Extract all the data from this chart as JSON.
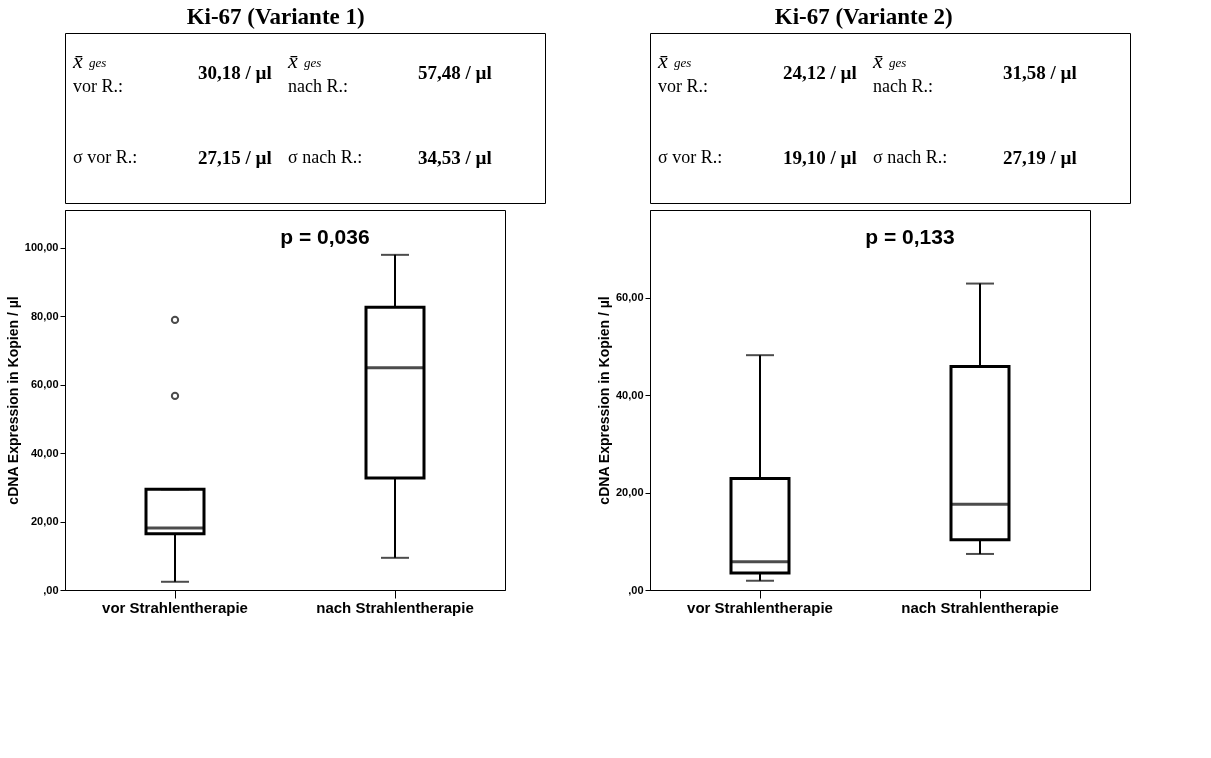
{
  "chart_data": [
    {
      "type": "box",
      "title": "Ki-67 (Variante 1)",
      "ylabel": "cDNA Expression in Kopien / µl",
      "categories": [
        "vor Strahlentherapie",
        "nach Strahlentherapie"
      ],
      "boxes": [
        {
          "low": 2.4,
          "q1": 16.4,
          "median": 18.1,
          "q3": 29.4,
          "high": 29.4,
          "outliers": [
            56.7,
            78.9
          ]
        },
        {
          "low": 9.4,
          "q1": 32.7,
          "median": 64.9,
          "q3": 82.6,
          "high": 97.9
        }
      ],
      "ylim": [
        0,
        111
      ],
      "yticks": [
        {
          "value": 0,
          "label": ",00"
        },
        {
          "value": 20,
          "label": "20,00"
        },
        {
          "value": 40,
          "label": "40,00"
        },
        {
          "value": 60,
          "label": "60,00"
        },
        {
          "value": 80,
          "label": "80,00"
        },
        {
          "value": 100,
          "label": "100,00"
        }
      ],
      "annotations": [
        "x̄$_{ges}$ vor R.:",
        "30,18 / µl",
        "x̄$_{ges}$ nach R.:",
        "57,48 / µl",
        "σ vor R.:",
        "27,15 / µl",
        "σ nach R.:",
        "34,53 / µl",
        "p = 0,036"
      ]
    },
    {
      "type": "box",
      "title": "Ki-67 (Variante 2)",
      "ylabel": "cDNA Expression in Kopien / µl",
      "categories": [
        "vor Strahlentherapie",
        "nach Strahlentherapie"
      ],
      "boxes": [
        {
          "low": 1.9,
          "q1": 3.5,
          "median": 5.8,
          "q3": 22.9,
          "high": 48.2
        },
        {
          "low": 7.4,
          "q1": 10.3,
          "median": 17.6,
          "q3": 45.9,
          "high": 62.9
        }
      ],
      "ylim": [
        0,
        78
      ],
      "yticks": [
        {
          "value": 0,
          "label": ",00"
        },
        {
          "value": 20,
          "label": "20,00"
        },
        {
          "value": 40,
          "label": "40,00"
        },
        {
          "value": 60,
          "label": "60,00"
        }
      ],
      "annotations": [
        "x̄$_{ges}$ vor R.:",
        "24,12 / µl",
        "x̄$_{ges}$ nach R.:",
        "31,58 / µl",
        "σ vor R.:",
        "19,10 / µl",
        "σ nach R.:",
        "27,19 / µl",
        "p = 0,133"
      ]
    }
  ]
}
